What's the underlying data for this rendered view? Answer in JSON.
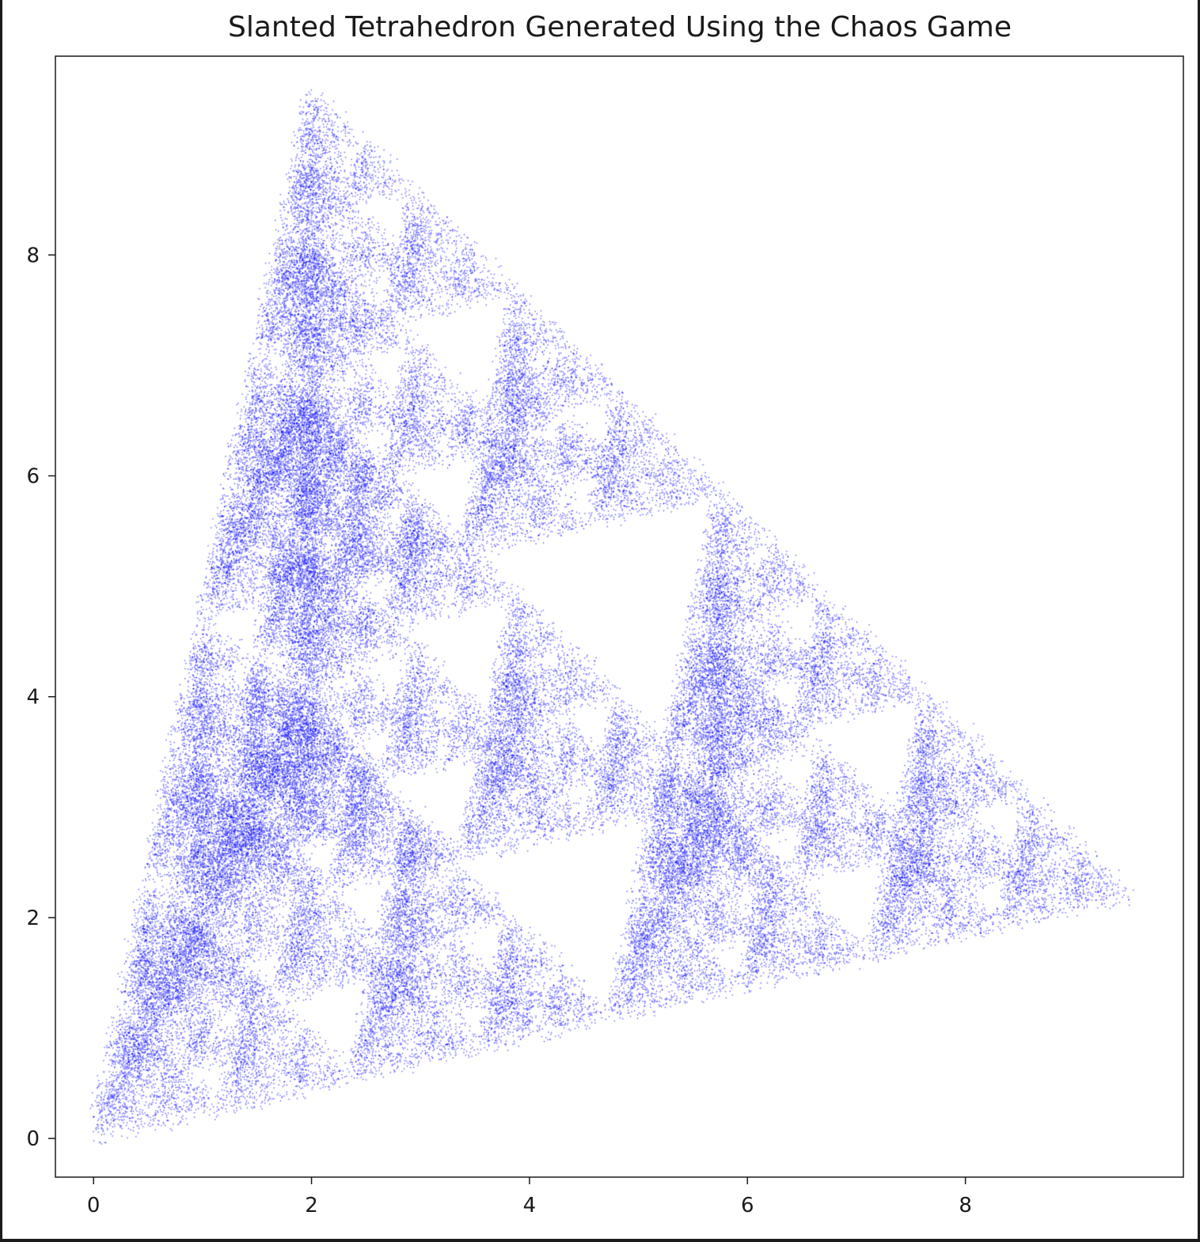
{
  "chart_data": {
    "type": "scatter",
    "title": "Slanted Tetrahedron Generated Using the Chaos Game",
    "xlabel": "",
    "ylabel": "",
    "xlim": [
      -0.35,
      10.0
    ],
    "ylim": [
      -0.35,
      9.8
    ],
    "x_ticks": [
      0,
      2,
      4,
      6,
      8
    ],
    "y_ticks": [
      0,
      2,
      4,
      6,
      8
    ],
    "x_tick_labels": [
      "0",
      "2",
      "4",
      "6",
      "8"
    ],
    "y_tick_labels": [
      "0",
      "2",
      "4",
      "6",
      "8"
    ],
    "grid": false,
    "marker_color": "#0000ff",
    "marker_alpha": 0.3,
    "vertices": [
      {
        "x": 0.0,
        "y": 0.0
      },
      {
        "x": 2.0,
        "y": 9.5
      },
      {
        "x": 9.5,
        "y": 2.2
      },
      {
        "x": 2.0,
        "y": 4.0
      }
    ],
    "series": [
      {
        "points_shown": 85000,
        "generator": "chaos-game ratio 0.5 among the four vertices"
      }
    ]
  }
}
